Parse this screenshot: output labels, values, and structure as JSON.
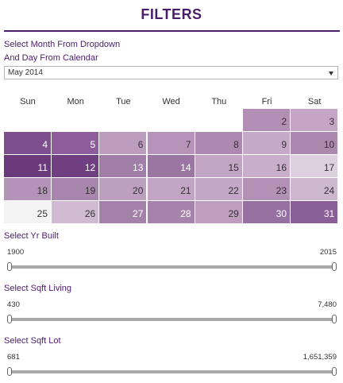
{
  "header": {
    "title": "FILTERS"
  },
  "month_filter": {
    "label_line1": "Select Month From Dropdown",
    "label_line2": "And Day From Calendar",
    "selected": "May 2014"
  },
  "calendar": {
    "weekdays": [
      "Sun",
      "Mon",
      "Tue",
      "Wed",
      "Thu",
      "Fri",
      "Sat"
    ],
    "weeks": [
      [
        null,
        null,
        null,
        null,
        null,
        "2",
        "3"
      ],
      [
        "4",
        "5",
        "6",
        "7",
        "8",
        "9",
        "10"
      ],
      [
        "11",
        "12",
        "13",
        "14",
        "15",
        "16",
        "17"
      ],
      [
        "18",
        "19",
        "20",
        "21",
        "22",
        "23",
        "24"
      ],
      [
        "25",
        "26",
        "27",
        "28",
        "29",
        "30",
        "31"
      ]
    ],
    "colors": [
      [
        null,
        null,
        null,
        null,
        null,
        "#b48fb5",
        "#c4a5c6"
      ],
      [
        "#7e4f8e",
        "#8c5d9a",
        "#bc9cbf",
        "#b693b8",
        "#ad89b1",
        "#c6a9c8",
        "#ab88ae"
      ],
      [
        "#6b3a7d",
        "#6f3f81",
        "#a17ea8",
        "#9c76a3",
        "#c2a5c4",
        "#c9aecb",
        "#ddd0de"
      ],
      [
        "#b493b8",
        "#a886ad",
        "#bd9fc0",
        "#c2a4c5",
        "#c4a6c6",
        "#b390b6",
        "#cdb7ce"
      ],
      [
        "#f3f3f3",
        "#cfbad1",
        "#a381a9",
        "#a683ab",
        "#bd9ebf",
        "#9670a0",
        "#8a5f97"
      ]
    ],
    "text_colors": [
      [
        null,
        null,
        null,
        null,
        null,
        "#333333",
        "#333333"
      ],
      [
        "#ffffff",
        "#ffffff",
        "#333333",
        "#333333",
        "#333333",
        "#333333",
        "#333333"
      ],
      [
        "#ffffff",
        "#ffffff",
        "#ffffff",
        "#ffffff",
        "#333333",
        "#333333",
        "#333333"
      ],
      [
        "#333333",
        "#333333",
        "#333333",
        "#333333",
        "#333333",
        "#333333",
        "#333333"
      ],
      [
        "#333333",
        "#333333",
        "#ffffff",
        "#ffffff",
        "#333333",
        "#ffffff",
        "#ffffff"
      ]
    ]
  },
  "yr_built": {
    "label": "Select Yr Built",
    "min": "1900",
    "max": "2015",
    "low": 0,
    "high": 1
  },
  "sqft_living": {
    "label": "Select Sqft Living",
    "min": "430",
    "max": "7,480",
    "low": 0,
    "high": 1
  },
  "sqft_lot": {
    "label": "Select Sqft Lot",
    "min": "681",
    "max": "1,651,359",
    "low": 0,
    "high": 1
  }
}
